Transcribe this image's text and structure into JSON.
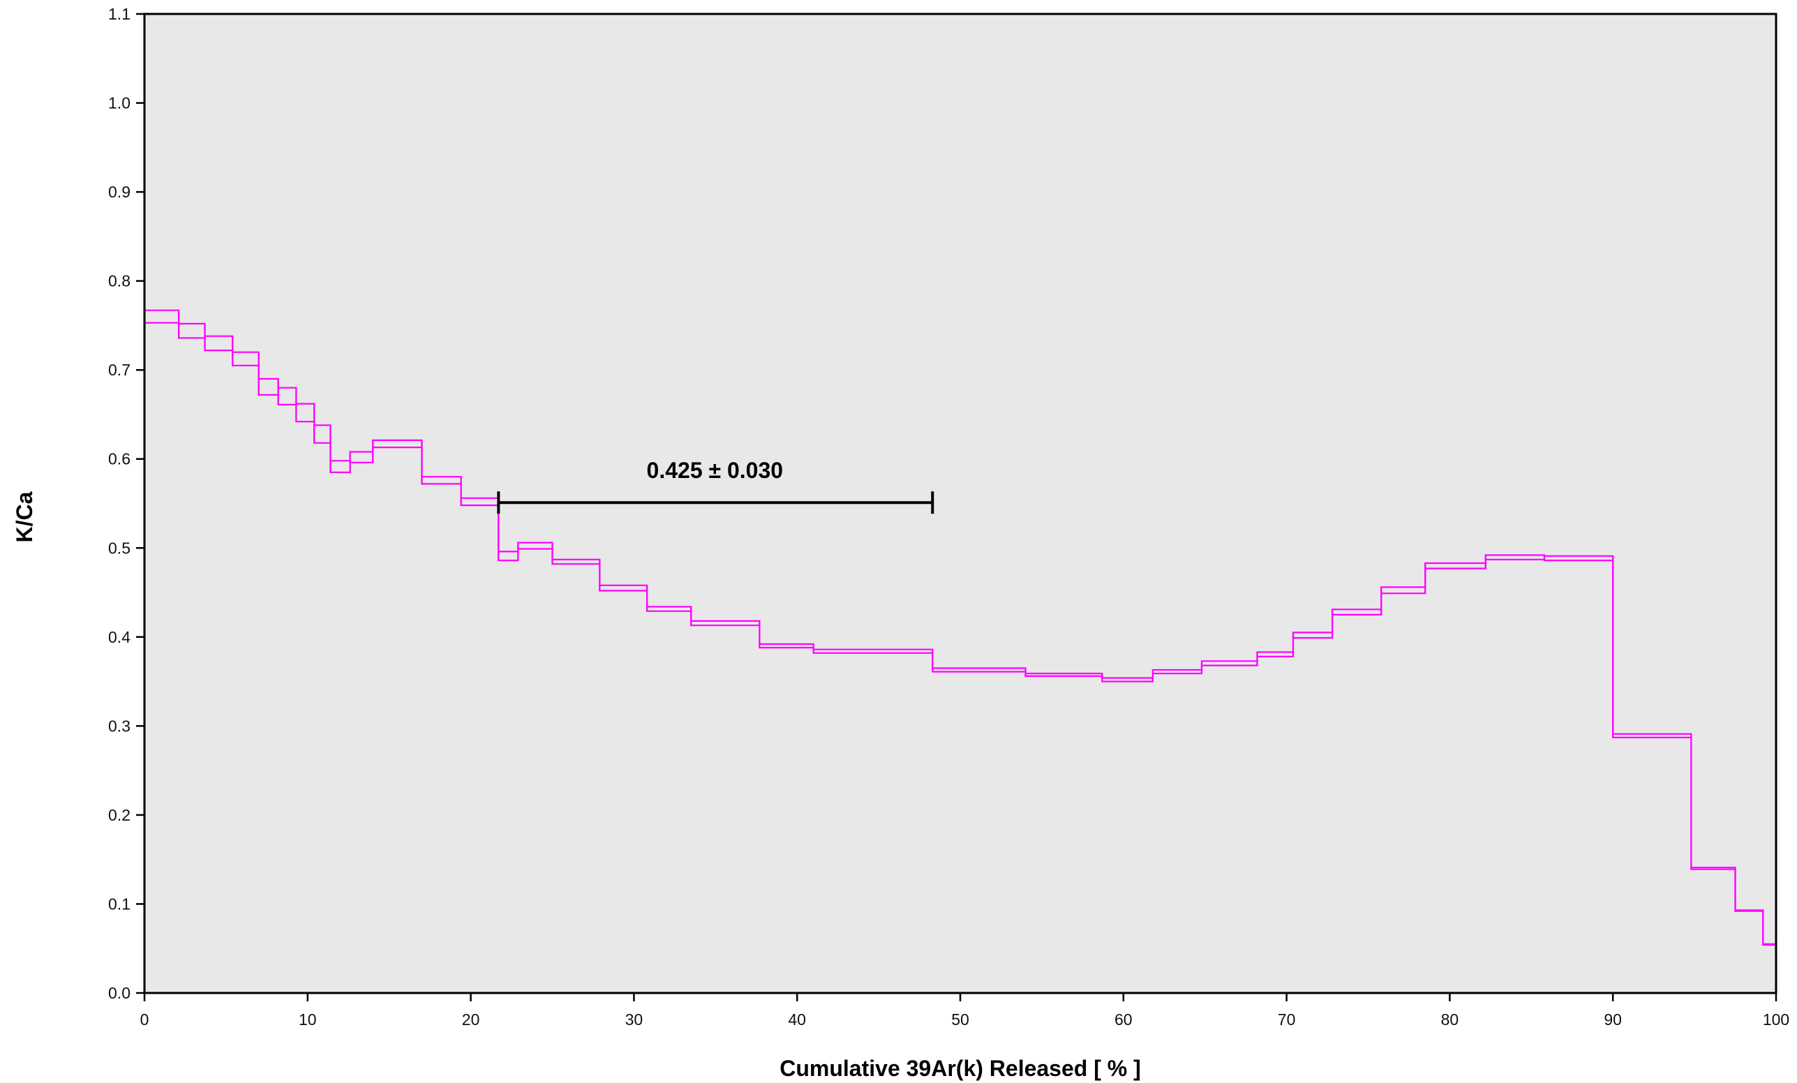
{
  "chart_data": {
    "type": "line",
    "subtype": "step-spectrum (error boxes)",
    "xlabel": "Cumulative 39Ar(k) Released [ % ]",
    "ylabel": "K/Ca",
    "xlim": [
      0,
      100
    ],
    "ylim": [
      0.0,
      1.1
    ],
    "x_ticks": [
      0,
      10,
      20,
      30,
      40,
      50,
      60,
      70,
      80,
      90,
      100
    ],
    "y_ticks": [
      0.0,
      0.1,
      0.2,
      0.3,
      0.4,
      0.5,
      0.6,
      0.7,
      0.8,
      0.9,
      1.0,
      1.1
    ],
    "y_tick_labels": [
      "0.0",
      "0.1",
      "0.2",
      "0.3",
      "0.4",
      "0.5",
      "0.6",
      "0.7",
      "0.8",
      "0.9",
      "1.0",
      "1.1"
    ],
    "grid": false,
    "plot_background": "#e8e8e8",
    "series_color": "#ff00ff",
    "steps": [
      {
        "x0": 0.0,
        "x1": 2.1,
        "lo": 0.753,
        "hi": 0.767
      },
      {
        "x0": 2.1,
        "x1": 3.7,
        "lo": 0.736,
        "hi": 0.752
      },
      {
        "x0": 3.7,
        "x1": 5.4,
        "lo": 0.722,
        "hi": 0.738
      },
      {
        "x0": 5.4,
        "x1": 7.0,
        "lo": 0.705,
        "hi": 0.72
      },
      {
        "x0": 7.0,
        "x1": 8.2,
        "lo": 0.672,
        "hi": 0.69
      },
      {
        "x0": 8.2,
        "x1": 9.3,
        "lo": 0.661,
        "hi": 0.68
      },
      {
        "x0": 9.3,
        "x1": 10.4,
        "lo": 0.642,
        "hi": 0.662
      },
      {
        "x0": 10.4,
        "x1": 11.4,
        "lo": 0.618,
        "hi": 0.638
      },
      {
        "x0": 11.4,
        "x1": 12.6,
        "lo": 0.585,
        "hi": 0.598
      },
      {
        "x0": 12.6,
        "x1": 14.0,
        "lo": 0.596,
        "hi": 0.608
      },
      {
        "x0": 14.0,
        "x1": 17.0,
        "lo": 0.613,
        "hi": 0.621
      },
      {
        "x0": 17.0,
        "x1": 19.4,
        "lo": 0.572,
        "hi": 0.58
      },
      {
        "x0": 19.4,
        "x1": 21.7,
        "lo": 0.548,
        "hi": 0.556
      },
      {
        "x0": 21.7,
        "x1": 22.9,
        "lo": 0.486,
        "hi": 0.496
      },
      {
        "x0": 22.9,
        "x1": 25.0,
        "lo": 0.499,
        "hi": 0.506
      },
      {
        "x0": 25.0,
        "x1": 27.9,
        "lo": 0.482,
        "hi": 0.487
      },
      {
        "x0": 27.9,
        "x1": 30.8,
        "lo": 0.452,
        "hi": 0.458
      },
      {
        "x0": 30.8,
        "x1": 33.5,
        "lo": 0.429,
        "hi": 0.434
      },
      {
        "x0": 33.5,
        "x1": 37.7,
        "lo": 0.413,
        "hi": 0.418
      },
      {
        "x0": 37.7,
        "x1": 41.0,
        "lo": 0.388,
        "hi": 0.392
      },
      {
        "x0": 41.0,
        "x1": 48.3,
        "lo": 0.382,
        "hi": 0.386
      },
      {
        "x0": 48.3,
        "x1": 54.0,
        "lo": 0.361,
        "hi": 0.365
      },
      {
        "x0": 54.0,
        "x1": 58.7,
        "lo": 0.356,
        "hi": 0.359
      },
      {
        "x0": 58.7,
        "x1": 61.8,
        "lo": 0.35,
        "hi": 0.354
      },
      {
        "x0": 61.8,
        "x1": 64.8,
        "lo": 0.359,
        "hi": 0.363
      },
      {
        "x0": 64.8,
        "x1": 68.2,
        "lo": 0.368,
        "hi": 0.373
      },
      {
        "x0": 68.2,
        "x1": 70.4,
        "lo": 0.378,
        "hi": 0.383
      },
      {
        "x0": 70.4,
        "x1": 72.8,
        "lo": 0.399,
        "hi": 0.405
      },
      {
        "x0": 72.8,
        "x1": 75.8,
        "lo": 0.425,
        "hi": 0.431
      },
      {
        "x0": 75.8,
        "x1": 78.5,
        "lo": 0.449,
        "hi": 0.456
      },
      {
        "x0": 78.5,
        "x1": 82.2,
        "lo": 0.477,
        "hi": 0.483
      },
      {
        "x0": 82.2,
        "x1": 85.8,
        "lo": 0.487,
        "hi": 0.492
      },
      {
        "x0": 85.8,
        "x1": 90.0,
        "lo": 0.486,
        "hi": 0.491
      },
      {
        "x0": 90.0,
        "x1": 94.8,
        "lo": 0.287,
        "hi": 0.291
      },
      {
        "x0": 94.8,
        "x1": 97.5,
        "lo": 0.139,
        "hi": 0.141
      },
      {
        "x0": 97.5,
        "x1": 99.2,
        "lo": 0.092,
        "hi": 0.093
      },
      {
        "x0": 99.2,
        "x1": 100.0,
        "lo": 0.054,
        "hi": 0.055
      }
    ],
    "annotations": [
      {
        "type": "bracket",
        "text": "0.425 ± 0.030",
        "x0": 21.7,
        "x1": 48.3,
        "y": 0.551
      }
    ]
  }
}
